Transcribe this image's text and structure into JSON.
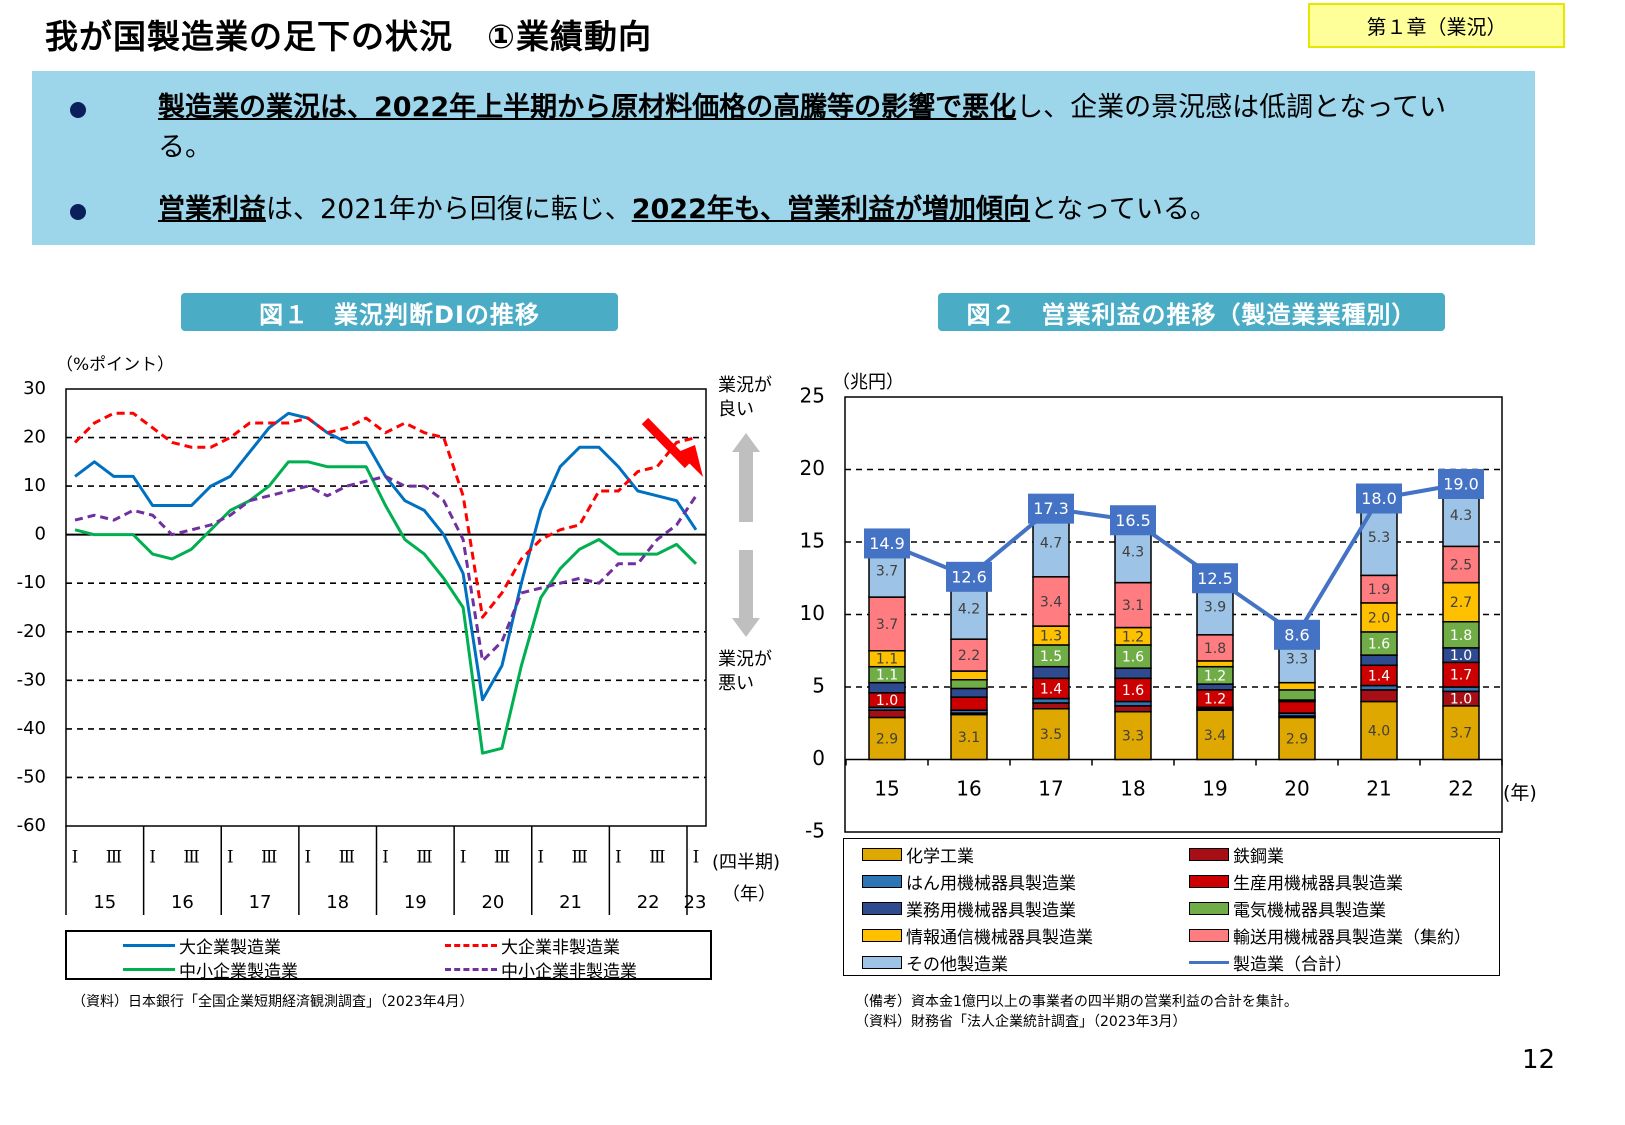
{
  "header": {
    "title": "我が国製造業の足下の状況　①業績動向",
    "chapter_badge": "第１章（業況）"
  },
  "summary": {
    "bullets": [
      {
        "segments": [
          {
            "text": "製造業の業況は、2022年上半期から原材料価格の高騰等の影響で悪化",
            "bold": true
          },
          {
            "text": "し、企業の景況感は低調となっている。",
            "bold": false
          }
        ]
      },
      {
        "segments": [
          {
            "text": "営業利益",
            "bold": true
          },
          {
            "text": "は、2021年から回復に転じ、",
            "bold": false
          },
          {
            "text": "2022年も、営業利益が増加傾向",
            "bold": true
          },
          {
            "text": "となっている。",
            "bold": false
          }
        ]
      }
    ]
  },
  "figure1": {
    "title": "図１　業況判断DIの推移",
    "unit_label": "（%ポイント）",
    "good_label": "業況が\n良い",
    "bad_label": "業況が\n悪い",
    "quarter_axis_label": "(四半期)",
    "year_axis_label": "（年）",
    "source": "（資料）日本銀行「全国企業短期経済観測調査」（2023年4月）",
    "colors": {
      "arrow": "#ff0000",
      "good_bad_arrows": "#bfbfbf"
    }
  },
  "figure2": {
    "title": "図２　営業利益の推移（製造業業種別）",
    "unit_label": "（兆円）",
    "year_axis_label": "(年)",
    "note": "（備考）資本金1億円以上の事業者の四半期の営業利益の合計を集計。",
    "source": "（資料）財務省「法人企業統計調査」（2023年3月）"
  },
  "chart_data": [
    {
      "type": "line",
      "title": "図１　業況判断DIの推移",
      "ylabel": "（%ポイント）",
      "ylim": [
        -60,
        30
      ],
      "yticks": [
        30,
        20,
        10,
        0,
        -10,
        -20,
        -30,
        -40,
        -50,
        -60
      ],
      "grid": true,
      "quarter_ticks": [
        "Ⅰ",
        "Ⅲ"
      ],
      "last_quarter_tick": "Ⅰ",
      "years": [
        "15",
        "16",
        "17",
        "18",
        "19",
        "20",
        "21",
        "22",
        "23"
      ],
      "x_start": "2015 Q1",
      "x_end": "2023 Q1",
      "legend_position": "bottom",
      "series": [
        {
          "name": "大企業製造業",
          "color": "#0070c0",
          "dashed": false,
          "values": [
            12,
            15,
            12,
            12,
            6,
            6,
            6,
            10,
            12,
            17,
            22,
            25,
            24,
            21,
            19,
            19,
            12,
            7,
            5,
            0,
            -8,
            -34,
            -27,
            -10,
            5,
            14,
            18,
            18,
            14,
            9,
            8,
            7,
            1
          ]
        },
        {
          "name": "大企業非製造業",
          "color": "#ff0000",
          "dashed": true,
          "values": [
            19,
            23,
            25,
            25,
            22,
            19,
            18,
            18,
            20,
            23,
            23,
            23,
            24,
            21,
            22,
            24,
            21,
            23,
            21,
            20,
            8,
            -17,
            -12,
            -5,
            -1,
            1,
            2,
            9,
            9,
            13,
            14,
            19,
            20
          ]
        },
        {
          "name": "中小企業製造業",
          "color": "#00b050",
          "dashed": false,
          "values": [
            1,
            0,
            0,
            0,
            -4,
            -5,
            -3,
            1,
            5,
            7,
            10,
            15,
            15,
            14,
            14,
            14,
            6,
            -1,
            -4,
            -9,
            -15,
            -45,
            -44,
            -27,
            -13,
            -7,
            -3,
            -1,
            -4,
            -4,
            -4,
            -2,
            -6
          ]
        },
        {
          "name": "中小企業非製造業",
          "color": "#7030a0",
          "dashed": true,
          "values": [
            3,
            4,
            3,
            5,
            4,
            0,
            1,
            2,
            4,
            7,
            8,
            9,
            10,
            8,
            10,
            11,
            12,
            10,
            10,
            7,
            -1,
            -26,
            -22,
            -12,
            -11,
            -10,
            -9,
            -10,
            -6,
            -6,
            -1,
            2,
            8
          ]
        }
      ]
    },
    {
      "type": "bar",
      "stacked": true,
      "title": "図２　営業利益の推移（製造業業種別）",
      "ylabel": "（兆円）",
      "xlabel": "(年)",
      "ylim": [
        -5,
        25
      ],
      "yticks": [
        25,
        20,
        15,
        10,
        5,
        0,
        -5
      ],
      "grid": true,
      "legend_position": "bottom",
      "categories": [
        "15",
        "16",
        "17",
        "18",
        "19",
        "20",
        "21",
        "22"
      ],
      "series": [
        {
          "name": "化学工業",
          "color": "#dfa800",
          "values": [
            2.9,
            3.1,
            3.5,
            3.3,
            3.4,
            2.9,
            4.0,
            3.7
          ],
          "labels": [
            "2.9",
            "3.1",
            "3.5",
            "3.3",
            "3.4",
            "2.9",
            "4.0",
            "3.7"
          ]
        },
        {
          "name": "鉄鋼業",
          "color": "#a50f15",
          "values": [
            0.5,
            0.1,
            0.4,
            0.4,
            0.1,
            0.1,
            0.8,
            1.0
          ],
          "labels": [
            null,
            null,
            null,
            null,
            null,
            null,
            null,
            "1.0"
          ]
        },
        {
          "name": "はん用機械器具製造業",
          "color": "#2e75b6",
          "values": [
            0.2,
            0.2,
            0.3,
            0.3,
            0.1,
            0.2,
            0.3,
            0.3
          ],
          "labels": [
            null,
            null,
            null,
            null,
            null,
            null,
            null,
            null
          ]
        },
        {
          "name": "生産用機械器具製造業",
          "color": "#cc0000",
          "values": [
            1.0,
            0.9,
            1.4,
            1.6,
            1.2,
            0.8,
            1.4,
            1.7
          ],
          "labels": [
            "1.0",
            null,
            "1.4",
            "1.6",
            "1.2",
            null,
            "1.4",
            "1.7"
          ]
        },
        {
          "name": "業務用機械器具製造業",
          "color": "#2f4b8f",
          "values": [
            0.7,
            0.6,
            0.8,
            0.7,
            0.4,
            0.1,
            0.7,
            1.0
          ],
          "labels": [
            null,
            null,
            null,
            null,
            null,
            null,
            null,
            "1.0"
          ]
        },
        {
          "name": "電気機械器具製造業",
          "color": "#70ad47",
          "values": [
            1.1,
            0.6,
            1.5,
            1.6,
            1.2,
            0.7,
            1.6,
            1.8
          ],
          "labels": [
            "1.1",
            null,
            "1.5",
            "1.6",
            "1.2",
            null,
            "1.6",
            "1.8"
          ]
        },
        {
          "name": "情報通信機械器具製造業",
          "color": "#ffc000",
          "values": [
            1.1,
            0.6,
            1.3,
            1.2,
            0.4,
            0.5,
            2.0,
            2.7
          ],
          "labels": [
            "1.1",
            null,
            "1.3",
            "1.2",
            null,
            null,
            "2.0",
            "2.7"
          ]
        },
        {
          "name": "輸送用機械器具製造業（集約）",
          "color": "#ff7c80",
          "values": [
            3.7,
            2.2,
            3.4,
            3.1,
            1.8,
            0.0,
            1.9,
            2.5
          ],
          "labels": [
            "3.7",
            "2.2",
            "3.4",
            "3.1",
            "1.8",
            null,
            "1.9",
            "2.5"
          ]
        },
        {
          "name": "その他製造業",
          "color": "#9dc3e6",
          "values": [
            3.7,
            4.2,
            4.7,
            4.3,
            3.9,
            3.3,
            5.3,
            4.3
          ],
          "labels": [
            "3.7",
            "4.2",
            "4.7",
            "4.3",
            "3.9",
            "3.3",
            "5.3",
            "4.3"
          ]
        }
      ],
      "total": {
        "name": "製造業（合計）",
        "color": "#4472c4",
        "values": [
          14.9,
          12.6,
          17.3,
          16.5,
          12.5,
          8.6,
          18.0,
          19.0
        ],
        "labels": [
          "14.9",
          "12.6",
          "17.3",
          "16.5",
          "12.5",
          "8.6",
          "18.0",
          "19.0"
        ]
      }
    }
  ],
  "page_number": "12"
}
